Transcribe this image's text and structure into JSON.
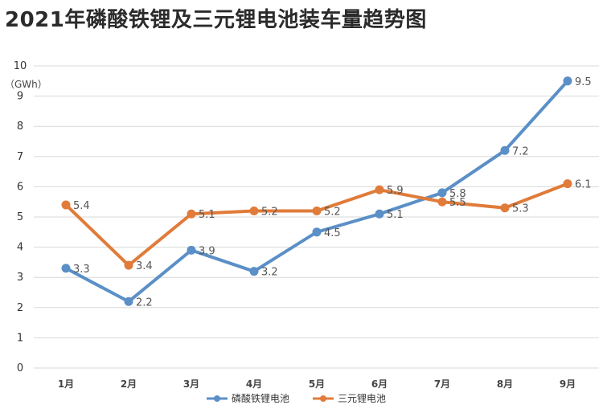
{
  "chart_data": {
    "type": "line",
    "title": "2021年磷酸铁锂及三元锂电池装车量趋势图",
    "unit_label": "（GWh）",
    "categories": [
      "1月",
      "2月",
      "3月",
      "4月",
      "5月",
      "6月",
      "7月",
      "8月",
      "9月"
    ],
    "series": [
      {
        "name": "磷酸铁锂电池",
        "color": "#5b8fc7",
        "values": [
          3.3,
          2.2,
          3.9,
          3.2,
          4.5,
          5.1,
          5.8,
          7.2,
          9.5
        ]
      },
      {
        "name": "三元锂电池",
        "color": "#e07b39",
        "values": [
          5.4,
          3.4,
          5.1,
          5.2,
          5.2,
          5.9,
          5.5,
          5.3,
          6.1
        ]
      }
    ],
    "ylim": [
      0,
      10
    ],
    "yticks": [
      0,
      1,
      2,
      3,
      4,
      5,
      6,
      7,
      8,
      9,
      10
    ],
    "grid": true,
    "legend_position": "bottom-center"
  }
}
